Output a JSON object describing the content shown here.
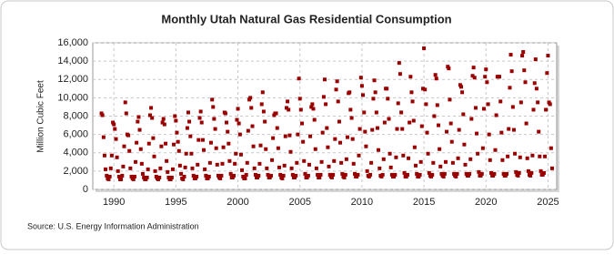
{
  "chart_data": {
    "type": "scatter",
    "title": "Monthly Utah Natural Gas Residential Consumption",
    "y_label": "Million Cubic Feet",
    "source": "Source: U.S. Energy Information Administration",
    "color": "#990000",
    "xlim": [
      1988.3,
      2025.7
    ],
    "xticks": [
      1990,
      1995,
      2000,
      2005,
      2010,
      2015,
      2020,
      2025
    ],
    "ylim": [
      0,
      16000
    ],
    "yticks": [
      0,
      {
        "value": 2000,
        "label": "2,000"
      },
      {
        "value": 4000,
        "label": "4,000"
      },
      {
        "value": 6000,
        "label": "6,000"
      },
      {
        "value": 8000,
        "label": "8,000"
      },
      {
        "value": 10000,
        "label": "10,000"
      },
      {
        "value": 12000,
        "label": "12,000"
      },
      {
        "value": 14000,
        "label": "14,000"
      },
      {
        "value": 16000,
        "label": "16,000"
      }
    ],
    "grid": true,
    "x": [
      1989,
      1989.08,
      1989.17,
      1989.25,
      1989.33,
      1989.42,
      1989.5,
      1989.58,
      1989.67,
      1989.75,
      1989.83,
      1989.92,
      1990,
      1990.08,
      1990.17,
      1990.25,
      1990.33,
      1990.42,
      1990.5,
      1990.58,
      1990.67,
      1990.75,
      1990.83,
      1990.92,
      1991,
      1991.08,
      1991.17,
      1991.25,
      1991.33,
      1991.42,
      1991.5,
      1991.58,
      1991.67,
      1991.75,
      1991.83,
      1991.92,
      1992,
      1992.08,
      1992.17,
      1992.25,
      1992.33,
      1992.42,
      1992.5,
      1992.58,
      1992.67,
      1992.75,
      1992.83,
      1992.92,
      1993,
      1993.08,
      1993.17,
      1993.25,
      1993.33,
      1993.42,
      1993.5,
      1993.58,
      1993.67,
      1993.75,
      1993.83,
      1993.92,
      1994,
      1994.08,
      1994.17,
      1994.25,
      1994.33,
      1994.42,
      1994.5,
      1994.58,
      1994.67,
      1994.75,
      1994.83,
      1994.92,
      1995,
      1995.08,
      1995.17,
      1995.25,
      1995.33,
      1995.42,
      1995.5,
      1995.58,
      1995.67,
      1995.75,
      1995.83,
      1995.92,
      1996,
      1996.08,
      1996.17,
      1996.25,
      1996.33,
      1996.42,
      1996.5,
      1996.58,
      1996.67,
      1996.75,
      1996.83,
      1996.92,
      1997,
      1997.08,
      1997.17,
      1997.25,
      1997.33,
      1997.42,
      1997.5,
      1997.58,
      1997.67,
      1997.75,
      1997.83,
      1997.92,
      1998,
      1998.08,
      1998.17,
      1998.25,
      1998.33,
      1998.42,
      1998.5,
      1998.58,
      1998.67,
      1998.75,
      1998.83,
      1998.92,
      1999,
      1999.08,
      1999.17,
      1999.25,
      1999.33,
      1999.42,
      1999.5,
      1999.58,
      1999.67,
      1999.75,
      1999.83,
      1999.92,
      2000,
      2000.08,
      2000.17,
      2000.25,
      2000.33,
      2000.42,
      2000.5,
      2000.58,
      2000.67,
      2000.75,
      2000.83,
      2000.92,
      2001,
      2001.08,
      2001.17,
      2001.25,
      2001.33,
      2001.42,
      2001.5,
      2001.58,
      2001.67,
      2001.75,
      2001.83,
      2001.92,
      2002,
      2002.08,
      2002.17,
      2002.25,
      2002.33,
      2002.42,
      2002.5,
      2002.58,
      2002.67,
      2002.75,
      2002.83,
      2002.92,
      2003,
      2003.08,
      2003.17,
      2003.25,
      2003.33,
      2003.42,
      2003.5,
      2003.58,
      2003.67,
      2003.75,
      2003.83,
      2003.92,
      2004,
      2004.08,
      2004.17,
      2004.25,
      2004.33,
      2004.42,
      2004.5,
      2004.58,
      2004.67,
      2004.75,
      2004.83,
      2004.92,
      2005,
      2005.08,
      2005.17,
      2005.25,
      2005.33,
      2005.42,
      2005.5,
      2005.58,
      2005.67,
      2005.75,
      2005.83,
      2005.92,
      2006,
      2006.08,
      2006.17,
      2006.25,
      2006.33,
      2006.42,
      2006.5,
      2006.58,
      2006.67,
      2006.75,
      2006.83,
      2006.92,
      2007,
      2007.08,
      2007.17,
      2007.25,
      2007.33,
      2007.42,
      2007.5,
      2007.58,
      2007.67,
      2007.75,
      2007.83,
      2007.92,
      2008,
      2008.08,
      2008.17,
      2008.25,
      2008.33,
      2008.42,
      2008.5,
      2008.58,
      2008.67,
      2008.75,
      2008.83,
      2008.92,
      2009,
      2009.08,
      2009.17,
      2009.25,
      2009.33,
      2009.42,
      2009.5,
      2009.58,
      2009.67,
      2009.75,
      2009.83,
      2009.92,
      2010,
      2010.08,
      2010.17,
      2010.25,
      2010.33,
      2010.42,
      2010.5,
      2010.58,
      2010.67,
      2010.75,
      2010.83,
      2010.92,
      2011,
      2011.08,
      2011.17,
      2011.25,
      2011.33,
      2011.42,
      2011.5,
      2011.58,
      2011.67,
      2011.75,
      2011.83,
      2011.92,
      2012,
      2012.08,
      2012.17,
      2012.25,
      2012.33,
      2012.42,
      2012.5,
      2012.58,
      2012.67,
      2012.75,
      2012.83,
      2012.92,
      2013,
      2013.08,
      2013.17,
      2013.25,
      2013.33,
      2013.42,
      2013.5,
      2013.58,
      2013.67,
      2013.75,
      2013.83,
      2013.92,
      2014,
      2014.08,
      2014.17,
      2014.25,
      2014.33,
      2014.42,
      2014.5,
      2014.58,
      2014.67,
      2014.75,
      2014.83,
      2014.92,
      2015,
      2015.08,
      2015.17,
      2015.25,
      2015.33,
      2015.42,
      2015.5,
      2015.58,
      2015.67,
      2015.75,
      2015.83,
      2015.92,
      2016,
      2016.08,
      2016.17,
      2016.25,
      2016.33,
      2016.42,
      2016.5,
      2016.58,
      2016.67,
      2016.75,
      2016.83,
      2016.92,
      2017,
      2017.08,
      2017.17,
      2017.25,
      2017.33,
      2017.42,
      2017.5,
      2017.58,
      2017.67,
      2017.75,
      2017.83,
      2017.92,
      2018,
      2018.08,
      2018.17,
      2018.25,
      2018.33,
      2018.42,
      2018.5,
      2018.58,
      2018.67,
      2018.75,
      2018.83,
      2018.92,
      2019,
      2019.08,
      2019.17,
      2019.25,
      2019.33,
      2019.42,
      2019.5,
      2019.58,
      2019.67,
      2019.75,
      2019.83,
      2019.92,
      2020,
      2020.08,
      2020.17,
      2020.25,
      2020.33,
      2020.42,
      2020.5,
      2020.58,
      2020.67,
      2020.75,
      2020.83,
      2020.92,
      2021,
      2021.08,
      2021.17,
      2021.25,
      2021.33,
      2021.42,
      2021.5,
      2021.58,
      2021.67,
      2021.75,
      2021.83,
      2021.92,
      2022,
      2022.08,
      2022.17,
      2022.25,
      2022.33,
      2022.42,
      2022.5,
      2022.58,
      2022.67,
      2022.75,
      2022.83,
      2022.92,
      2023,
      2023.08,
      2023.17,
      2023.25,
      2023.33,
      2023.42,
      2023.5,
      2023.58,
      2023.67,
      2023.75,
      2023.83,
      2023.92,
      2024,
      2024.08,
      2024.17,
      2024.25,
      2024.33,
      2024.42,
      2024.5,
      2024.58,
      2024.67,
      2024.75,
      2024.83,
      2024.92,
      2025,
      2025.08,
      2025.17,
      2025.25,
      2025.33
    ],
    "values": [
      8300,
      8100,
      5700,
      3700,
      2200,
      1500,
      1200,
      1100,
      1400,
      2300,
      3700,
      7300,
      7100,
      6600,
      5500,
      3500,
      2000,
      1400,
      1100,
      1100,
      1500,
      2500,
      4700,
      9500,
      8300,
      6000,
      5900,
      4200,
      2300,
      1400,
      1200,
      1100,
      1400,
      3000,
      5100,
      7400,
      7900,
      6500,
      4400,
      2800,
      1700,
      1300,
      1100,
      1100,
      1300,
      2200,
      5000,
      8100,
      8900,
      7800,
      5600,
      3600,
      2000,
      1400,
      1200,
      1100,
      1300,
      2300,
      4700,
      7300,
      7700,
      7100,
      5000,
      3100,
      1900,
      1300,
      1100,
      1100,
      1300,
      2200,
      4900,
      8000,
      7500,
      6200,
      5200,
      4200,
      2600,
      1700,
      1200,
      1100,
      1400,
      2400,
      3900,
      6700,
      8400,
      7400,
      5800,
      3900,
      2300,
      1500,
      1200,
      1200,
      1400,
      2700,
      5400,
      7800,
      8500,
      7300,
      5400,
      4300,
      2200,
      1500,
      1200,
      1200,
      1400,
      2900,
      5100,
      9800,
      9000,
      7700,
      6600,
      4500,
      2700,
      1500,
      1300,
      1200,
      1500,
      2800,
      4600,
      8400,
      8300,
      7300,
      6300,
      5000,
      3100,
      1700,
      1300,
      1300,
      1500,
      2800,
      3900,
      7600,
      8800,
      7200,
      6000,
      3800,
      2100,
      1400,
      1200,
      1200,
      1600,
      2900,
      6400,
      9800,
      10000,
      8900,
      6900,
      4700,
      2300,
      1600,
      1300,
      1300,
      1500,
      2800,
      4800,
      9300,
      10600,
      8500,
      7400,
      4400,
      2300,
      1600,
      1300,
      1300,
      1500,
      3200,
      5600,
      8100,
      8300,
      8300,
      6700,
      4500,
      2400,
      1600,
      1300,
      1200,
      1500,
      2600,
      5800,
      8900,
      9600,
      8700,
      5900,
      4100,
      2300,
      1600,
      1300,
      1300,
      1500,
      2900,
      6000,
      12100,
      9900,
      8700,
      7200,
      5200,
      3100,
      1700,
      1300,
      1300,
      1500,
      2700,
      5800,
      9000,
      9300,
      8800,
      7600,
      4400,
      2300,
      1600,
      1300,
      1300,
      1600,
      3000,
      6200,
      10100,
      12000,
      9300,
      6700,
      4600,
      2500,
      1600,
      1400,
      1300,
      1600,
      3100,
      5500,
      10900,
      11800,
      9600,
      7400,
      5100,
      2900,
      1700,
      1400,
      1300,
      1600,
      3300,
      5700,
      10500,
      10600,
      8700,
      7800,
      5500,
      2800,
      1700,
      1400,
      1400,
      1600,
      3700,
      6600,
      12200,
      11300,
      10300,
      8400,
      6300,
      4700,
      2000,
      1500,
      1400,
      1600,
      2900,
      6500,
      9900,
      11900,
      10600,
      8400,
      6700,
      4300,
      2300,
      1500,
      1400,
      1600,
      3300,
      7300,
      11000,
      11000,
      9900,
      7700,
      3900,
      2400,
      1600,
      1400,
      1400,
      1600,
      3500,
      6600,
      9400,
      13800,
      12600,
      8400,
      6600,
      3700,
      1800,
      1400,
      1400,
      1600,
      3400,
      7300,
      12300,
      10600,
      9600,
      7500,
      4600,
      2600,
      1700,
      1400,
      1400,
      1600,
      3000,
      6900,
      11000,
      15400,
      10900,
      9300,
      6200,
      3900,
      1800,
      1500,
      1400,
      1600,
      2900,
      8000,
      12500,
      12100,
      9200,
      7000,
      4400,
      2500,
      1700,
      1500,
      1400,
      1700,
      3000,
      6300,
      13400,
      13200,
      9800,
      7200,
      5200,
      2900,
      1700,
      1500,
      1400,
      1700,
      3400,
      6500,
      11400,
      11200,
      10600,
      8200,
      4900,
      2700,
      1700,
      1500,
      1500,
      1700,
      3300,
      7700,
      12400,
      13300,
      12200,
      8900,
      6100,
      3900,
      1900,
      1500,
      1500,
      1700,
      4500,
      8800,
      12300,
      13100,
      11700,
      9300,
      6000,
      3200,
      1800,
      1500,
      1500,
      1700,
      4300,
      8100,
      12300,
      12300,
      12300,
      9600,
      6200,
      3200,
      1700,
      1500,
      1500,
      1700,
      3600,
      6600,
      11100,
      14700,
      12900,
      9000,
      6500,
      3900,
      1900,
      1600,
      1500,
      1800,
      3500,
      9500,
      14600,
      15000,
      13000,
      11700,
      7200,
      3400,
      2000,
      1600,
      1500,
      1800,
      3700,
      8700,
      11600,
      14200,
      11000,
      9500,
      6300,
      3600,
      2000,
      1600,
      1600,
      1800,
      3600,
      8700,
      12700,
      14600,
      9500,
      9300,
      4500,
      2300
    ]
  }
}
